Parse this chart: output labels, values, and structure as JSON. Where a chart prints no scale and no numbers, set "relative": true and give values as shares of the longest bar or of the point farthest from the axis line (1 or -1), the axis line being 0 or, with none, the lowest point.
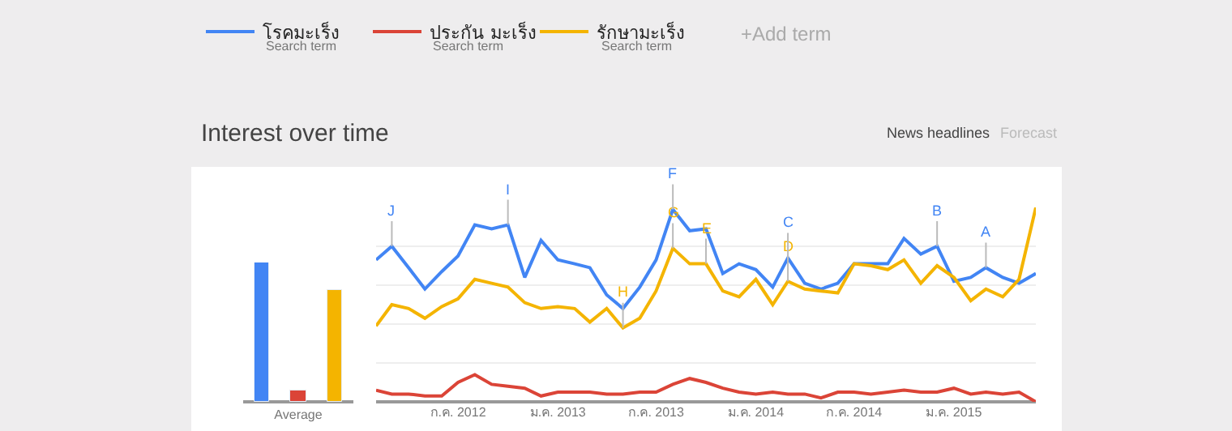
{
  "chart_data": [
    {
      "type": "bar",
      "relative": true,
      "categories": [
        "Average"
      ],
      "series": [
        {
          "color": "#4285f4",
          "values": [
            1
          ]
        },
        {
          "color": "#db4437",
          "values": [
            0.08
          ]
        },
        {
          "color": "#f4b400",
          "values": [
            0.8
          ]
        }
      ]
    },
    {
      "type": "line",
      "relative": true,
      "title": "Interest over time",
      "legend": "top",
      "grid": "y",
      "marker": "none",
      "line_style": "solid",
      "x": [
        "2012-02",
        "2012-03",
        "2012-04",
        "2012-05",
        "2012-06",
        "2012-07",
        "2012-08",
        "2012-09",
        "2012-10",
        "2012-11",
        "2012-12",
        "2013-01",
        "2013-02",
        "2013-03",
        "2013-04",
        "2013-05",
        "2013-06",
        "2013-07",
        "2013-08",
        "2013-09",
        "2013-10",
        "2013-11",
        "2013-12",
        "2014-01",
        "2014-02",
        "2014-03",
        "2014-04",
        "2014-05",
        "2014-06",
        "2014-07",
        "2014-08",
        "2014-09",
        "2014-10",
        "2014-11",
        "2014-12",
        "2015-01",
        "2015-02",
        "2015-03",
        "2015-04",
        "2015-05",
        "2015-06"
      ],
      "xlim": [
        "2012-02",
        "2015-06"
      ],
      "xticks": [
        {
          "value": "2012-07",
          "label": "ก.ค. 2012"
        },
        {
          "value": "2013-01",
          "label": "ม.ค. 2013"
        },
        {
          "value": "2013-07",
          "label": "ก.ค. 2013"
        },
        {
          "value": "2014-01",
          "label": "ม.ค. 2014"
        },
        {
          "value": "2014-07",
          "label": "ก.ค. 2014"
        },
        {
          "value": "2015-01",
          "label": "ม.ค. 2015"
        }
      ],
      "series": [
        {
          "name": "โรคมะเร็ง",
          "color": "#4285f4",
          "values": [
            0.73,
            0.8,
            0.69,
            0.58,
            0.67,
            0.75,
            0.91,
            0.89,
            0.91,
            0.64,
            0.83,
            0.73,
            0.71,
            0.69,
            0.55,
            0.48,
            0.59,
            0.73,
            0.99,
            0.88,
            0.89,
            0.66,
            0.71,
            0.68,
            0.59,
            0.74,
            0.61,
            0.58,
            0.61,
            0.71,
            0.71,
            0.71,
            0.84,
            0.76,
            0.8,
            0.62,
            0.64,
            0.69,
            0.64,
            0.61,
            0.66
          ]
        },
        {
          "name": "ประกัน มะเร็ง",
          "color": "#db4437",
          "values": [
            0.06,
            0.04,
            0.04,
            0.03,
            0.03,
            0.1,
            0.14,
            0.09,
            0.08,
            0.07,
            0.03,
            0.05,
            0.05,
            0.05,
            0.04,
            0.04,
            0.05,
            0.05,
            0.09,
            0.12,
            0.1,
            0.07,
            0.05,
            0.04,
            0.05,
            0.04,
            0.04,
            0.02,
            0.05,
            0.05,
            0.04,
            0.05,
            0.06,
            0.05,
            0.05,
            0.07,
            0.04,
            0.05,
            0.04,
            0.05,
            0
          ]
        },
        {
          "name": "รักษามะเร็ง",
          "color": "#f4b400",
          "values": [
            0.39,
            0.5,
            0.48,
            0.43,
            0.49,
            0.53,
            0.63,
            0.61,
            0.59,
            0.51,
            0.48,
            0.49,
            0.48,
            0.41,
            0.48,
            0.38,
            0.43,
            0.57,
            0.79,
            0.71,
            0.71,
            0.57,
            0.54,
            0.63,
            0.5,
            0.62,
            0.58,
            0.57,
            0.56,
            0.71,
            0.7,
            0.68,
            0.73,
            0.61,
            0.7,
            0.64,
            0.52,
            0.58,
            0.54,
            0.63,
            1
          ]
        }
      ],
      "annotations": [
        "Search term",
        "Search term",
        "Search term",
        "+Add term",
        "News headlines",
        "Forecast",
        {
          "text": "J",
          "x": "2012-03",
          "y": 0.8
        },
        {
          "text": "I",
          "x": "2012-10",
          "y": 0.91
        },
        {
          "text": "H",
          "x": "2013-05",
          "y": 0.38
        },
        {
          "text": "G",
          "x": "2013-08",
          "y": 0.79
        },
        {
          "text": "F",
          "x": "2013-08",
          "y": 0.99
        },
        {
          "text": "E",
          "x": "2013-10",
          "y": 0.71
        },
        {
          "text": "D",
          "x": "2014-03",
          "y": 0.62
        },
        {
          "text": "C",
          "x": "2014-03",
          "y": 0.74
        },
        {
          "text": "B",
          "x": "2014-12",
          "y": 0.8
        },
        {
          "text": "A",
          "x": "2015-03",
          "y": 0.69
        }
      ]
    }
  ]
}
